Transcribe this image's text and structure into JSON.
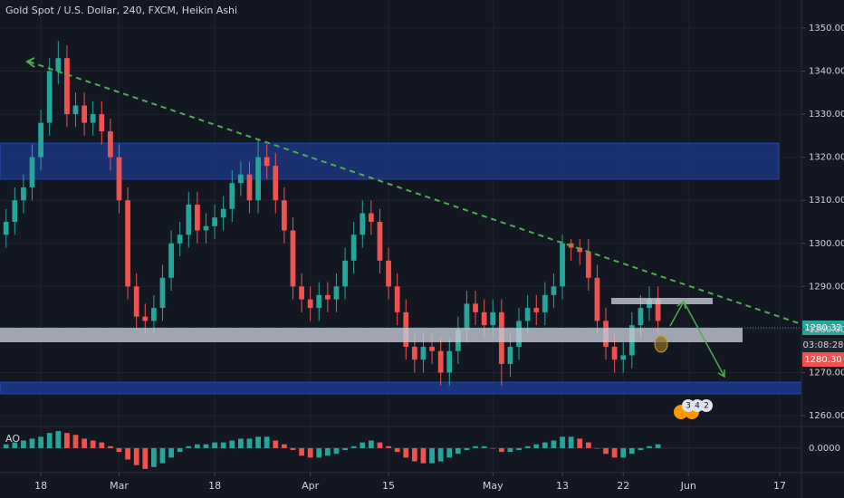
{
  "chart_data": {
    "type": "candlestick",
    "title": "Gold Spot / U.S. Dollar, 240, FXCM, Heikin Ashi",
    "x": [
      -4,
      -3,
      -2,
      -1,
      0,
      1,
      2,
      3,
      4,
      5,
      6,
      7,
      8,
      9,
      10,
      11,
      12,
      13,
      14,
      15,
      16,
      17,
      18,
      19,
      20,
      21,
      22,
      23,
      24,
      25,
      26,
      27,
      28,
      29,
      30,
      31,
      32,
      33,
      34,
      35,
      36,
      37,
      38,
      39,
      40,
      41,
      42,
      43,
      44,
      45,
      46,
      47,
      48,
      49,
      50,
      51,
      52,
      53,
      54,
      55,
      56,
      57,
      58,
      59,
      60,
      61,
      62,
      63,
      64,
      65,
      66,
      67,
      68,
      69,
      70,
      71
    ],
    "open": [
      1302,
      1305,
      1310,
      1313,
      1320,
      1328,
      1340,
      1343,
      1330,
      1332,
      1328,
      1330,
      1326,
      1320,
      1310,
      1290,
      1283,
      1282,
      1285,
      1292,
      1300,
      1302,
      1309,
      1303,
      1304,
      1306,
      1308,
      1314,
      1316,
      1310,
      1320,
      1318,
      1310,
      1303,
      1290,
      1287,
      1285,
      1288,
      1287,
      1290,
      1296,
      1302,
      1307,
      1305,
      1296,
      1290,
      1284,
      1276,
      1273,
      1276,
      1275,
      1270,
      1275,
      1280,
      1286,
      1284,
      1281,
      1284,
      1272,
      1276,
      1282,
      1285,
      1284,
      1288,
      1290,
      1300,
      1299,
      1298,
      1292,
      1282,
      1276,
      1273,
      1274,
      1281,
      1285,
      1287
    ],
    "high": [
      1308,
      1313,
      1316,
      1323,
      1331,
      1343,
      1347,
      1346,
      1335,
      1335,
      1333,
      1333,
      1329,
      1323,
      1313,
      1293,
      1286,
      1288,
      1295,
      1303,
      1305,
      1312,
      1312,
      1307,
      1309,
      1311,
      1317,
      1319,
      1319,
      1324,
      1323,
      1321,
      1313,
      1306,
      1293,
      1290,
      1291,
      1291,
      1293,
      1299,
      1305,
      1310,
      1310,
      1308,
      1299,
      1293,
      1287,
      1279,
      1279,
      1279,
      1278,
      1278,
      1283,
      1289,
      1289,
      1287,
      1287,
      1287,
      1279,
      1285,
      1288,
      1288,
      1291,
      1293,
      1302,
      1301,
      1301,
      1301,
      1295,
      1285,
      1279,
      1277,
      1284,
      1288,
      1290,
      1290
    ],
    "low": [
      1299,
      1302,
      1307,
      1310,
      1317,
      1325,
      1337,
      1327,
      1327,
      1325,
      1325,
      1323,
      1317,
      1307,
      1287,
      1280,
      1279,
      1279,
      1282,
      1289,
      1297,
      1299,
      1300,
      1300,
      1301,
      1303,
      1305,
      1311,
      1307,
      1307,
      1315,
      1307,
      1300,
      1287,
      1284,
      1282,
      1282,
      1284,
      1284,
      1287,
      1293,
      1299,
      1302,
      1293,
      1287,
      1281,
      1273,
      1270,
      1270,
      1272,
      1267,
      1267,
      1272,
      1277,
      1281,
      1278,
      1278,
      1267,
      1269,
      1273,
      1279,
      1281,
      1281,
      1285,
      1287,
      1296,
      1295,
      1289,
      1279,
      1273,
      1270,
      1270,
      1271,
      1278,
      1282,
      1279
    ],
    "close": [
      1305,
      1310,
      1313,
      1320,
      1328,
      1340,
      1343,
      1330,
      1332,
      1328,
      1330,
      1326,
      1320,
      1310,
      1290,
      1283,
      1282,
      1285,
      1292,
      1300,
      1302,
      1309,
      1303,
      1304,
      1306,
      1308,
      1314,
      1316,
      1310,
      1320,
      1318,
      1310,
      1303,
      1290,
      1287,
      1285,
      1288,
      1287,
      1290,
      1296,
      1302,
      1307,
      1305,
      1296,
      1290,
      1284,
      1276,
      1273,
      1276,
      1275,
      1270,
      1275,
      1280,
      1286,
      1284,
      1281,
      1284,
      1272,
      1276,
      1282,
      1285,
      1284,
      1288,
      1290,
      1300,
      1299,
      1298,
      1292,
      1282,
      1276,
      1273,
      1274,
      1281,
      1285,
      1287,
      1282
    ],
    "up_color": "#26a69a",
    "down_color": "#ef5350",
    "xlim": [
      -4.7,
      87.5
    ],
    "xticks": [
      {
        "value": 0,
        "label": "18"
      },
      {
        "value": 9,
        "label": "Mar"
      },
      {
        "value": 20,
        "label": "18"
      },
      {
        "value": 31,
        "label": "Apr"
      },
      {
        "value": 40,
        "label": "15"
      },
      {
        "value": 52,
        "label": "May"
      },
      {
        "value": 60,
        "label": "13"
      },
      {
        "value": 67,
        "label": "22"
      },
      {
        "value": 74.5,
        "label": "Jun"
      },
      {
        "value": 85,
        "label": "17"
      }
    ],
    "ylim": [
      1257.7,
      1356.5
    ],
    "yticks": [
      {
        "value": 1260,
        "label": "1260.00"
      },
      {
        "value": 1270,
        "label": "1270.00"
      },
      {
        "value": 1280,
        "label": "1280.00"
      },
      {
        "value": 1290,
        "label": "1290.00"
      },
      {
        "value": 1300,
        "label": "1300.00"
      },
      {
        "value": 1310,
        "label": "1310.00"
      },
      {
        "value": 1320,
        "label": "1320.00"
      },
      {
        "value": 1330,
        "label": "1330.00"
      },
      {
        "value": 1340,
        "label": "1340.00"
      },
      {
        "value": 1350,
        "label": "1350.00"
      }
    ],
    "grid": true,
    "price_labels": [
      "1280.32",
      "03:08:28",
      "1280.30"
    ],
    "events": [
      "3",
      "4",
      "2"
    ],
    "ao": {
      "label": "AO",
      "values": [
        2,
        3,
        4,
        5,
        6,
        8,
        9,
        8,
        7,
        5,
        4,
        3,
        1,
        -2,
        -6,
        -9,
        -11,
        -10,
        -8,
        -5,
        -2,
        1,
        2,
        2,
        3,
        3,
        4,
        5,
        5,
        6,
        6,
        4,
        2,
        -1,
        -4,
        -5,
        -5,
        -4,
        -3,
        -1,
        1,
        3,
        4,
        3,
        1,
        -2,
        -5,
        -7,
        -8,
        -8,
        -7,
        -5,
        -3,
        -1,
        1,
        1,
        0,
        -2,
        -2,
        -1,
        1,
        2,
        3,
        4,
        6,
        6,
        5,
        3,
        0,
        -3,
        -5,
        -5,
        -3,
        -1,
        1,
        2
      ],
      "ylim": [
        -12,
        10
      ],
      "yticks": [
        {
          "value": 0,
          "label": "0.0000"
        }
      ]
    }
  }
}
